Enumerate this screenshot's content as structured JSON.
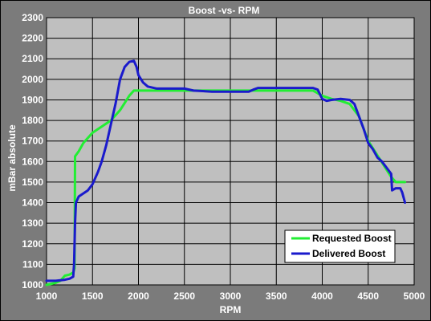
{
  "chart_data": {
    "type": "line",
    "title": "Boost -vs- RPM",
    "xlabel": "RPM",
    "ylabel": "mBar absolute",
    "xlim": [
      1000,
      5000
    ],
    "ylim": [
      1000,
      2300
    ],
    "x_ticks": [
      1000,
      1500,
      2000,
      2500,
      3000,
      3500,
      4000,
      4500,
      5000
    ],
    "y_ticks": [
      1000,
      1100,
      1200,
      1300,
      1400,
      1500,
      1600,
      1700,
      1800,
      1900,
      2000,
      2100,
      2200,
      2300
    ],
    "grid": true,
    "legend_position": "bottom-right",
    "series": [
      {
        "name": "Requested Boost",
        "color": "#22ee33",
        "points": [
          [
            1000,
            1000
          ],
          [
            1100,
            1010
          ],
          [
            1150,
            1020
          ],
          [
            1200,
            1045
          ],
          [
            1250,
            1050
          ],
          [
            1290,
            1060
          ],
          [
            1305,
            1080
          ],
          [
            1310,
            1625
          ],
          [
            1350,
            1650
          ],
          [
            1400,
            1690
          ],
          [
            1500,
            1740
          ],
          [
            1600,
            1770
          ],
          [
            1700,
            1800
          ],
          [
            1800,
            1850
          ],
          [
            1900,
            1920
          ],
          [
            1950,
            1945
          ],
          [
            2000,
            1945
          ],
          [
            2500,
            1945
          ],
          [
            3000,
            1945
          ],
          [
            3500,
            1945
          ],
          [
            3900,
            1945
          ],
          [
            4000,
            1920
          ],
          [
            4100,
            1905
          ],
          [
            4200,
            1895
          ],
          [
            4300,
            1880
          ],
          [
            4400,
            1820
          ],
          [
            4500,
            1700
          ],
          [
            4600,
            1630
          ],
          [
            4700,
            1560
          ],
          [
            4750,
            1525
          ],
          [
            4800,
            1500
          ],
          [
            4900,
            1500
          ]
        ]
      },
      {
        "name": "Delivered Boost",
        "color": "#1a1acc",
        "points": [
          [
            1000,
            1020
          ],
          [
            1050,
            1020
          ],
          [
            1100,
            1020
          ],
          [
            1200,
            1025
          ],
          [
            1250,
            1030
          ],
          [
            1290,
            1040
          ],
          [
            1300,
            1100
          ],
          [
            1310,
            1300
          ],
          [
            1320,
            1400
          ],
          [
            1350,
            1430
          ],
          [
            1450,
            1460
          ],
          [
            1500,
            1490
          ],
          [
            1560,
            1550
          ],
          [
            1600,
            1600
          ],
          [
            1650,
            1680
          ],
          [
            1700,
            1780
          ],
          [
            1750,
            1880
          ],
          [
            1800,
            2000
          ],
          [
            1850,
            2060
          ],
          [
            1900,
            2085
          ],
          [
            1950,
            2090
          ],
          [
            1980,
            2060
          ],
          [
            2000,
            2020
          ],
          [
            2050,
            1985
          ],
          [
            2100,
            1965
          ],
          [
            2200,
            1955
          ],
          [
            2300,
            1955
          ],
          [
            2500,
            1955
          ],
          [
            2600,
            1945
          ],
          [
            2800,
            1940
          ],
          [
            3000,
            1940
          ],
          [
            3200,
            1940
          ],
          [
            3250,
            1950
          ],
          [
            3300,
            1958
          ],
          [
            3500,
            1958
          ],
          [
            3800,
            1958
          ],
          [
            3900,
            1958
          ],
          [
            3950,
            1950
          ],
          [
            4000,
            1905
          ],
          [
            4050,
            1895
          ],
          [
            4100,
            1900
          ],
          [
            4200,
            1905
          ],
          [
            4300,
            1900
          ],
          [
            4350,
            1880
          ],
          [
            4400,
            1820
          ],
          [
            4450,
            1760
          ],
          [
            4500,
            1690
          ],
          [
            4550,
            1660
          ],
          [
            4600,
            1620
          ],
          [
            4650,
            1600
          ],
          [
            4700,
            1570
          ],
          [
            4750,
            1540
          ],
          [
            4760,
            1460
          ],
          [
            4800,
            1470
          ],
          [
            4850,
            1470
          ],
          [
            4870,
            1450
          ],
          [
            4900,
            1400
          ]
        ]
      }
    ]
  }
}
